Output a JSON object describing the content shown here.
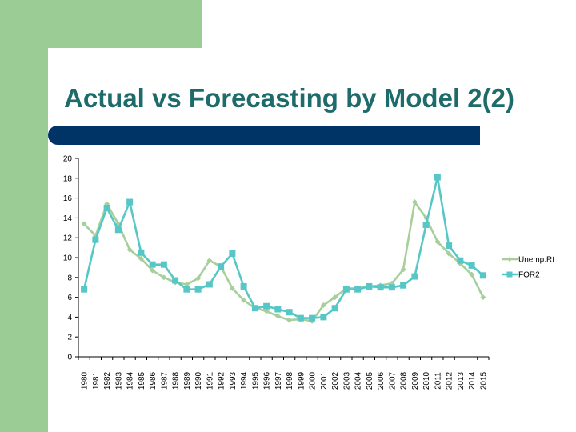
{
  "slide": {
    "title": "Actual vs Forecasting by Model 2(2)",
    "colors": {
      "green": "#9ccc95",
      "navy": "#003366",
      "title": "#1e6b6b"
    }
  },
  "chart_data": {
    "type": "line",
    "title": "",
    "xlabel": "",
    "ylabel": "",
    "ylim": [
      0,
      20
    ],
    "yticks": [
      0,
      2,
      4,
      6,
      8,
      10,
      12,
      14,
      16,
      18,
      20
    ],
    "grid": false,
    "legend_position": "right",
    "x": [
      1980,
      1981,
      1982,
      1983,
      1984,
      1985,
      1986,
      1987,
      1988,
      1989,
      1990,
      1991,
      1992,
      1993,
      1994,
      1995,
      1996,
      1997,
      1998,
      1999,
      2000,
      2001,
      2002,
      2003,
      2004,
      2005,
      2006,
      2007,
      2008,
      2009,
      2010,
      2011,
      2012,
      2013,
      2014,
      2015
    ],
    "series": [
      {
        "name": "Unemp.Rt",
        "color": "#a6cf9b",
        "marker": "diamond",
        "values": [
          13.4,
          12.2,
          15.4,
          13.4,
          10.8,
          9.9,
          8.7,
          8.0,
          7.5,
          7.3,
          7.9,
          9.7,
          9.1,
          6.9,
          5.7,
          4.9,
          4.6,
          4.1,
          3.7,
          3.8,
          3.6,
          5.2,
          6.0,
          6.9,
          6.9,
          7.1,
          7.2,
          7.4,
          8.8,
          15.6,
          14.0,
          11.6,
          10.4,
          9.4,
          8.3,
          6.0
        ]
      },
      {
        "name": "FOR2",
        "color": "#57c6c7",
        "marker": "square",
        "values": [
          6.8,
          11.8,
          15.0,
          12.8,
          15.6,
          10.5,
          9.3,
          9.3,
          7.7,
          6.8,
          6.8,
          7.3,
          9.1,
          10.4,
          7.1,
          4.9,
          5.1,
          4.8,
          4.5,
          3.9,
          3.9,
          4.0,
          4.9,
          6.8,
          6.8,
          7.1,
          7.0,
          7.0,
          7.2,
          8.1,
          13.3,
          18.1,
          11.2,
          9.7,
          9.2,
          8.2
        ]
      }
    ]
  }
}
